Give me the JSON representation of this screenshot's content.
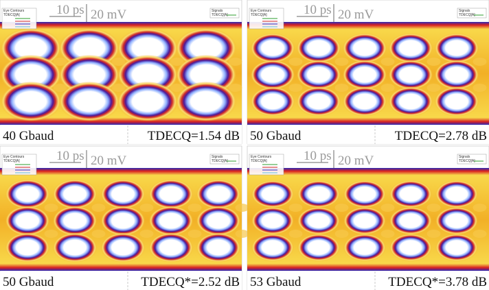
{
  "panels": [
    {
      "rate": "40 Gbaud",
      "metric": "TDECQ=1.54 dB",
      "time_scale": "10 ps",
      "voltage_scale": "20 mV",
      "legend_title": "Eye Contours",
      "legend_signal": "TDECQ[A]",
      "signals_title": "Signals",
      "signal_name": "TDECQ[A]"
    },
    {
      "rate": "50 Gbaud",
      "metric": "TDECQ=2.78 dB",
      "time_scale": "10 ps",
      "voltage_scale": "20 mV",
      "legend_title": "Eye Contours",
      "legend_signal": "TDECQ[A]",
      "signals_title": "Signals",
      "signal_name": "TDECQ[A]"
    },
    {
      "rate": "50 Gbaud",
      "metric": "TDECQ*=2.52 dB",
      "time_scale": "10 ps",
      "voltage_scale": "20 mV",
      "legend_title": "Eye Contours",
      "legend_signal": "TDECQ[A]",
      "signals_title": "Signals",
      "signal_name": "TDECQ[A]"
    },
    {
      "rate": "53 Gbaud",
      "metric": "TDECQ*=3.78 dB",
      "time_scale": "10 ps",
      "voltage_scale": "20 mV",
      "legend_title": "Eye Contours",
      "legend_signal": "TDECQ[A]",
      "signals_title": "Signals",
      "signal_name": "TDECQ[A]"
    }
  ]
}
